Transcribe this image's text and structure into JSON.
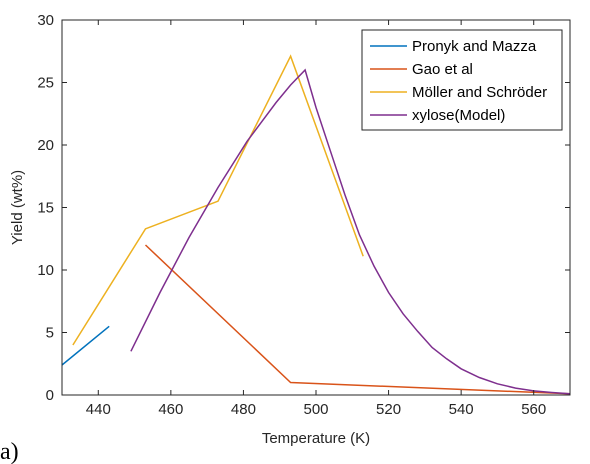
{
  "panel_label": "a)",
  "chart_data": {
    "type": "line",
    "title": "",
    "xlabel": "Temperature (K)",
    "ylabel": "Yield (wt%)",
    "xlim": [
      430,
      570
    ],
    "ylim": [
      0,
      30
    ],
    "xticks": [
      440,
      460,
      480,
      500,
      520,
      540,
      560
    ],
    "yticks": [
      0,
      5,
      10,
      15,
      20,
      25,
      30
    ],
    "legend_position": "top-right",
    "series": [
      {
        "name": "Pronyk and Mazza",
        "color": "#0072BD",
        "x": [
          430,
          443
        ],
        "y": [
          2.4,
          5.5
        ]
      },
      {
        "name": "Gao et al",
        "color": "#D95319",
        "x": [
          453,
          493,
          570
        ],
        "y": [
          12.0,
          1.0,
          0.1
        ]
      },
      {
        "name": "Möller and Schröder",
        "color": "#EDB120",
        "x": [
          433,
          453,
          473,
          493,
          513
        ],
        "y": [
          4.0,
          13.3,
          15.5,
          27.1,
          11.1
        ]
      },
      {
        "name": "xylose(Model)",
        "color": "#7E2F8E",
        "x": [
          449,
          457,
          465,
          473,
          481,
          489,
          493,
          497,
          500,
          504,
          508,
          512,
          516,
          520,
          524,
          528,
          532,
          536,
          540,
          545,
          550,
          555,
          560,
          565,
          570
        ],
        "y": [
          3.5,
          8.2,
          12.6,
          16.6,
          20.3,
          23.4,
          24.8,
          26.0,
          23.0,
          19.5,
          16.0,
          12.8,
          10.3,
          8.2,
          6.5,
          5.1,
          3.8,
          2.9,
          2.1,
          1.4,
          0.9,
          0.55,
          0.33,
          0.2,
          0.1
        ]
      }
    ]
  }
}
